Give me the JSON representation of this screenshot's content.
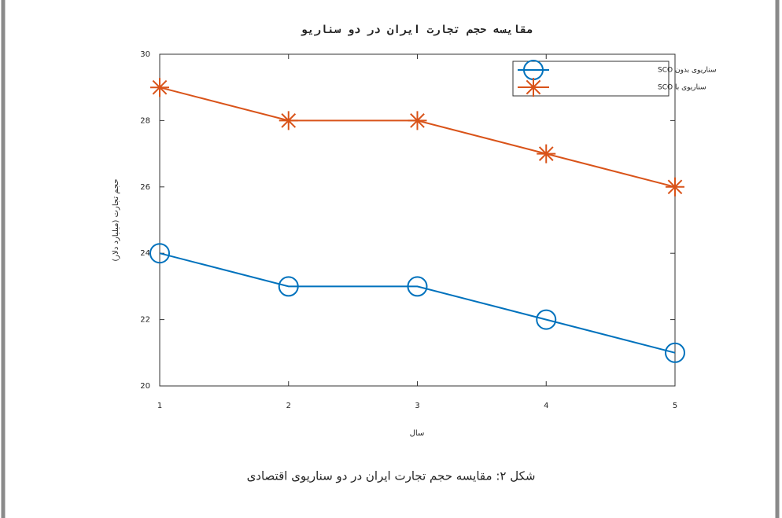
{
  "chart_data": {
    "type": "line",
    "title": "مقایسه حجم تجارت ایران در دو سناریو",
    "x_label": "سال",
    "y_label": "حجم تجارت (میلیارد دلار)",
    "x": [
      1,
      2,
      3,
      4,
      5
    ],
    "series": [
      {
        "name": "سناریوی بدون SCO",
        "color": "#0072BD",
        "marker": "circle",
        "values": [
          24,
          23,
          23,
          22,
          21
        ]
      },
      {
        "name": "سناریوی با SCO",
        "color": "#D95319",
        "marker": "star",
        "values": [
          29,
          28,
          28,
          27,
          26
        ]
      }
    ],
    "xlim": [
      1,
      5
    ],
    "xticks": [
      1,
      2,
      3,
      4,
      5
    ],
    "ylim": [
      20,
      30
    ],
    "yticks": [
      20,
      22,
      24,
      26,
      28,
      30
    ],
    "grid": false,
    "legend": "top-right",
    "caption": "شکل ۲: مقایسه حجم تجارت ایران در دو سناریوی اقتصادی"
  }
}
